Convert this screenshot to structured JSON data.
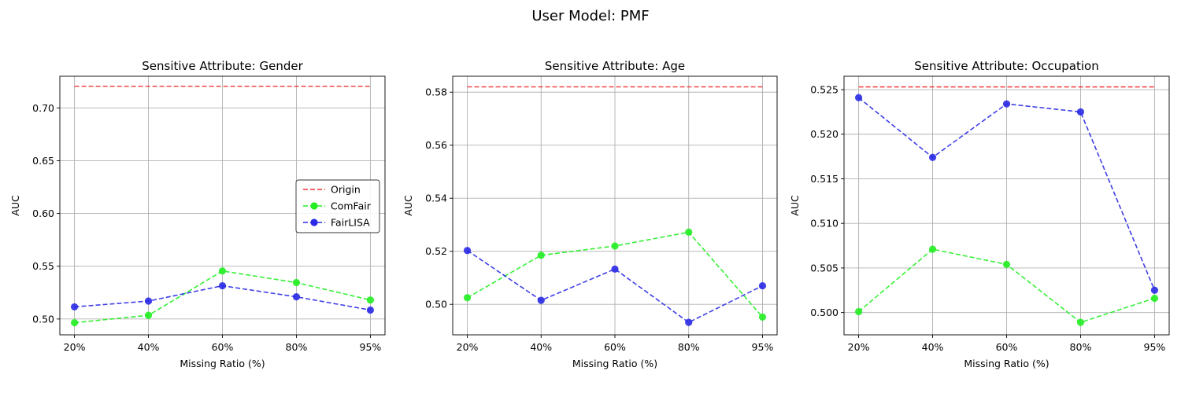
{
  "figure": {
    "suptitle": "User Model: PMF"
  },
  "legend": {
    "entries": [
      "Origin",
      "ComFair",
      "FairLISA"
    ]
  },
  "colors": {
    "Origin": "#ee3333",
    "ComFair": "#22ee22",
    "FairLISA": "#2a2ae6",
    "grid": "#b0b0b0",
    "axes": "#000000"
  },
  "chart_data": [
    {
      "type": "line",
      "title": "Sensitive Attribute: Gender",
      "xlabel": "Missing Ratio (%)",
      "ylabel": "AUC",
      "categories": [
        "20%",
        "40%",
        "60%",
        "80%",
        "95%"
      ],
      "ylim": [
        0.485,
        0.73
      ],
      "yticks": [
        0.5,
        0.55,
        0.6,
        0.65,
        0.7
      ],
      "ytick_labels": [
        "0.50",
        "0.55",
        "0.60",
        "0.65",
        "0.70"
      ],
      "grid": true,
      "legend": "center-right",
      "series": [
        {
          "name": "Origin",
          "values": [
            0.7205,
            0.7205,
            0.7205,
            0.7205,
            0.7205
          ]
        },
        {
          "name": "ComFair",
          "values": [
            0.4965,
            0.5035,
            0.5455,
            0.5345,
            0.518
          ]
        },
        {
          "name": "FairLISA",
          "values": [
            0.5115,
            0.517,
            0.5315,
            0.521,
            0.5085
          ]
        }
      ]
    },
    {
      "type": "line",
      "title": "Sensitive Attribute: Age",
      "xlabel": "Missing Ratio (%)",
      "ylabel": "AUC",
      "categories": [
        "20%",
        "40%",
        "60%",
        "80%",
        "95%"
      ],
      "ylim": [
        0.4885,
        0.586
      ],
      "yticks": [
        0.5,
        0.52,
        0.54,
        0.56,
        0.58
      ],
      "ytick_labels": [
        "0.50",
        "0.52",
        "0.54",
        "0.56",
        "0.58"
      ],
      "grid": true,
      "legend": "none",
      "series": [
        {
          "name": "Origin",
          "values": [
            0.582,
            0.582,
            0.582,
            0.582,
            0.582
          ]
        },
        {
          "name": "ComFair",
          "values": [
            0.5025,
            0.5185,
            0.522,
            0.5272,
            0.4952
          ]
        },
        {
          "name": "FairLISA",
          "values": [
            0.5203,
            0.5015,
            0.5133,
            0.4932,
            0.507
          ]
        }
      ]
    },
    {
      "type": "line",
      "title": "Sensitive Attribute: Occupation",
      "xlabel": "Missing Ratio (%)",
      "ylabel": "AUC",
      "categories": [
        "20%",
        "40%",
        "60%",
        "80%",
        "95%"
      ],
      "ylim": [
        0.4975,
        0.5265
      ],
      "yticks": [
        0.5,
        0.505,
        0.51,
        0.515,
        0.52,
        0.525
      ],
      "ytick_labels": [
        "0.500",
        "0.505",
        "0.510",
        "0.515",
        "0.520",
        "0.525"
      ],
      "grid": true,
      "legend": "none",
      "series": [
        {
          "name": "Origin",
          "values": [
            0.5253,
            0.5253,
            0.5253,
            0.5253,
            0.5253
          ]
        },
        {
          "name": "ComFair",
          "values": [
            0.5001,
            0.5071,
            0.5054,
            0.4989,
            0.5016
          ]
        },
        {
          "name": "FairLISA",
          "values": [
            0.5241,
            0.5174,
            0.5234,
            0.5225,
            0.5025
          ]
        }
      ]
    }
  ]
}
